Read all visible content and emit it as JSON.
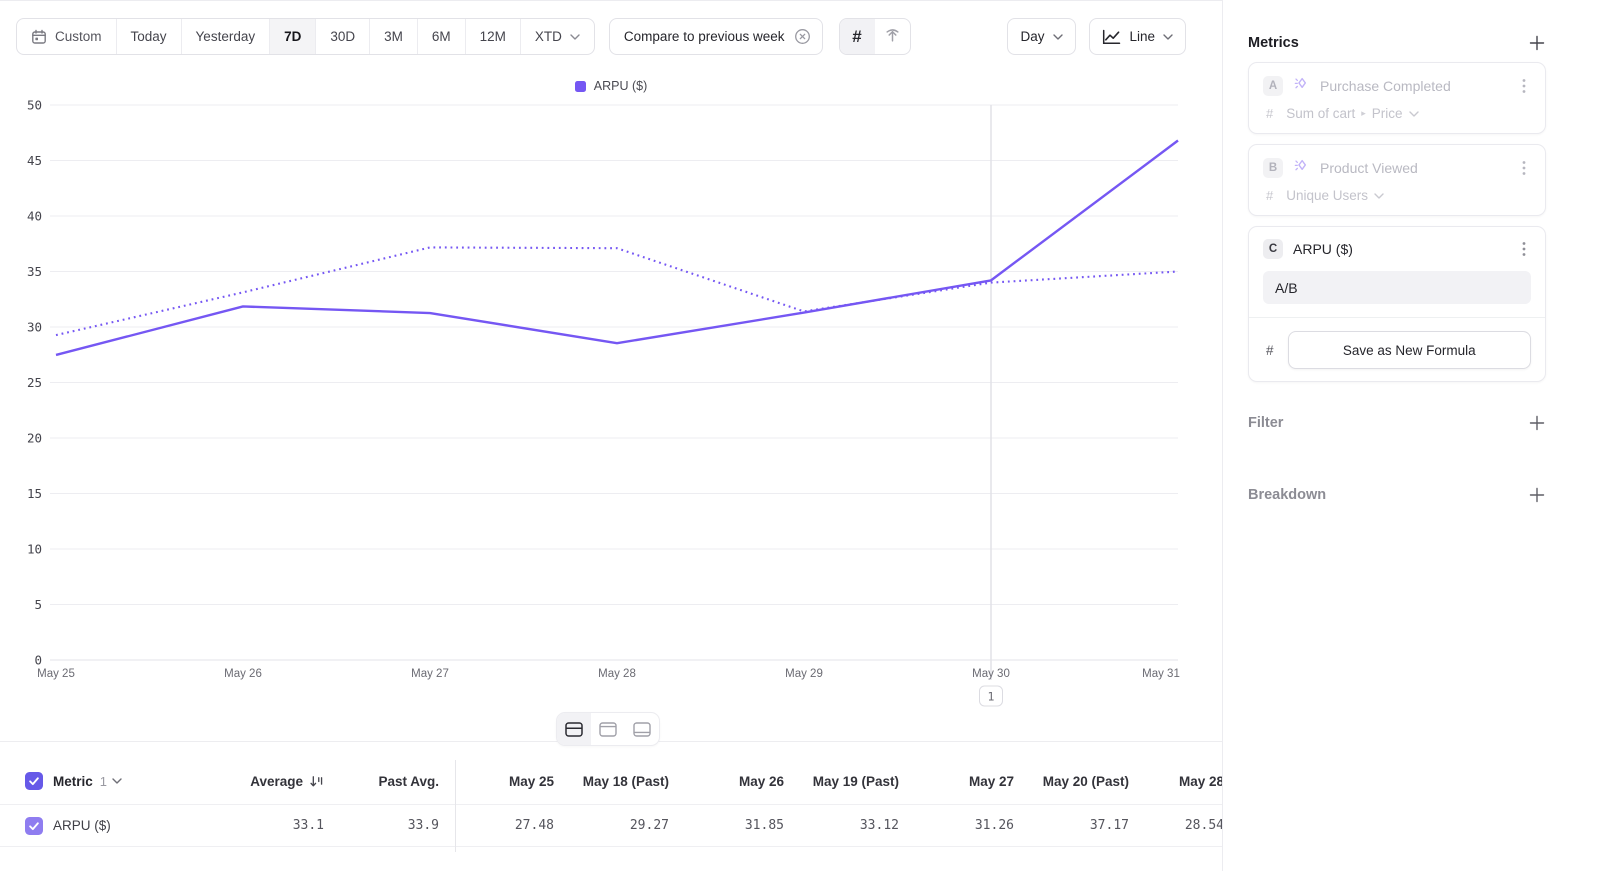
{
  "toolbar": {
    "date_ranges": [
      {
        "label": "Custom",
        "icon": "calendar-icon"
      },
      {
        "label": "Today"
      },
      {
        "label": "Yesterday"
      },
      {
        "label": "7D"
      },
      {
        "label": "30D"
      },
      {
        "label": "3M"
      },
      {
        "label": "6M"
      },
      {
        "label": "12M"
      },
      {
        "label": "XTD",
        "icon": "chevron-down-icon"
      }
    ],
    "active_range": "7D",
    "compare": {
      "label": "Compare to previous week"
    },
    "granularity": {
      "label": "Day"
    },
    "chart_type": {
      "label": "Line"
    }
  },
  "chart_data": {
    "type": "line",
    "title": "",
    "legend": [
      {
        "label": "ARPU ($)",
        "color": "#7557f3"
      }
    ],
    "x_labels": [
      "May 25",
      "May 26",
      "May 27",
      "May 28",
      "May 29",
      "May 30",
      "May 31"
    ],
    "ylim": [
      0,
      50
    ],
    "y_ticks": [
      0,
      5,
      10,
      15,
      20,
      25,
      30,
      35,
      40,
      45,
      50
    ],
    "grid": true,
    "legend_position": "top-center",
    "series": [
      {
        "name": "ARPU ($)",
        "period": "current",
        "line_style": "solid",
        "color": "#7557f3",
        "values": [
          27.48,
          31.85,
          31.26,
          28.54,
          31.3,
          34.2,
          46.8
        ]
      },
      {
        "name": "ARPU ($) previous week",
        "period": "previous",
        "line_style": "dotted",
        "color": "#7557f3",
        "values": [
          29.27,
          33.12,
          37.17,
          37.1,
          31.4,
          34.0,
          35.0
        ]
      }
    ],
    "annotation": {
      "x_label": "May 30",
      "badge": "1"
    }
  },
  "table": {
    "metric_header": {
      "label": "Metric",
      "count": "1"
    },
    "columns": [
      "Average",
      "Past Avg.",
      "May 25",
      "May 18 (Past)",
      "May 26",
      "May 19 (Past)",
      "May 27",
      "May 20 (Past)",
      "May 28"
    ],
    "rows": [
      {
        "metric": "ARPU ($)",
        "values": [
          "33.1",
          "33.9",
          "27.48",
          "29.27",
          "31.85",
          "33.12",
          "31.26",
          "37.17",
          "28.54"
        ]
      }
    ]
  },
  "panel": {
    "metrics": {
      "title": "Metrics",
      "cards": [
        {
          "badge": "A",
          "icon": "sparkle-event-icon",
          "name": "Purchase Completed",
          "prefix": "#",
          "measurement": "Sum of cart",
          "measurement_property": "Price",
          "state": "dimmed"
        },
        {
          "badge": "B",
          "icon": "sparkle-event-icon",
          "name": "Product Viewed",
          "prefix": "#",
          "measurement": "Unique Users",
          "state": "dimmed"
        },
        {
          "badge": "C",
          "name": "ARPU ($)",
          "formula": "A/B",
          "prefix": "#",
          "save_button": "Save as New Formula",
          "state": "editing"
        }
      ]
    },
    "filter": {
      "title": "Filter"
    },
    "breakdown": {
      "title": "Breakdown"
    }
  },
  "colors": {
    "accent": "#7557f3",
    "checkbox_primary": "#6659e8",
    "checkbox_series": "#8f7df0"
  }
}
